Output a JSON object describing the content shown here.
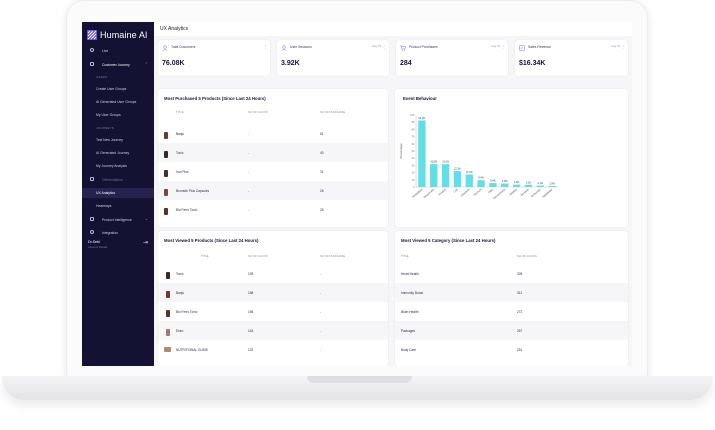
{
  "app": {
    "brand": "Humaine AI",
    "page_title": "UX Analytics"
  },
  "sidebar": {
    "items": [
      {
        "label": "Live"
      },
      {
        "label": "Customer Journey"
      },
      {
        "section": "USERS"
      },
      {
        "label": "Create User Groups"
      },
      {
        "label": "AI Generated User Groups"
      },
      {
        "label": "My User Groups"
      },
      {
        "section": "JOURNEYS"
      },
      {
        "label": "Test New Journey"
      },
      {
        "label": "AI Generated Journey"
      },
      {
        "label": "My Journey Analysis"
      },
      {
        "label": "Differentiation"
      },
      {
        "label": "UX Analytics"
      },
      {
        "label": "Heatmaps"
      },
      {
        "label": "Product Intelligence"
      },
      {
        "label": "Integration"
      }
    ],
    "user": {
      "name": "Dr.Sebi",
      "subtitle": "Account Details"
    }
  },
  "kpis": [
    {
      "label": "Total Customers",
      "value": "76.08K",
      "period": "",
      "color": "#7a5cf0"
    },
    {
      "label": "User Sessions",
      "value": "3.92K",
      "period": "Aug '24",
      "color": "#7a5cf0"
    },
    {
      "label": "Product Purchases",
      "value": "284",
      "period": "Aug '24",
      "color": "#7a5cf0"
    },
    {
      "label": "Sales Revenue",
      "value": "$16.34K",
      "period": "Aug '24",
      "color": "#7a5cf0"
    }
  ],
  "purchased": {
    "title": "Most Purchased 5 Products (Since Last 24 Hours)",
    "cols": [
      "TITLE",
      "NO OF CLICKS",
      "NO OF PURCHASE"
    ],
    "rows": [
      {
        "title": "Banju",
        "clicks": "-",
        "purchase": "51"
      },
      {
        "title": "Tonic",
        "clicks": "-",
        "purchase": "40"
      },
      {
        "title": "Iron Plus",
        "clicks": "-",
        "purchase": "31"
      },
      {
        "title": "Bromide Plus Capsules",
        "clicks": "-",
        "purchase": "26"
      },
      {
        "title": "Bio Ferro Tonic",
        "clicks": "-",
        "purchase": "26"
      }
    ]
  },
  "event": {
    "title": "Event Behaviour"
  },
  "chart_data": {
    "type": "bar",
    "title": "Event Behaviour",
    "ylabel": "Percentage",
    "categories": [
      "Navigation",
      "Search Bar",
      "Product",
      "Cart",
      "Checkout",
      "Account",
      "Filter",
      "Recommend",
      "Wishlist",
      "Reviews",
      "Subscribe",
      "Newsletter"
    ],
    "values": [
      92.4,
      31.8,
      31.6,
      22.1,
      17.3,
      9.4,
      5.4,
      4.9,
      3.3,
      3.1,
      2.1,
      1.5
    ],
    "data_labels": [
      "92.4%",
      "31.8%",
      "31.6%",
      "22.1%",
      "17.3%",
      "9.4%",
      "5.4%",
      "4.9%",
      "3.3%",
      "3.1%",
      "2.1%",
      "1.5%"
    ],
    "ylim": [
      0,
      100
    ],
    "yticks": [
      0,
      10,
      20,
      30,
      40,
      50,
      60,
      70,
      80,
      90,
      100
    ],
    "color": "#5ee0e8",
    "grid": false
  },
  "viewed": {
    "title": "Most Viewed 5 Products (Since Last 24 Hours)",
    "cols": [
      "TITLE",
      "NO OF CLICKS",
      "NO OF PURCHASE"
    ],
    "rows": [
      {
        "title": "Tonic",
        "clicks": "193",
        "purchase": "-"
      },
      {
        "title": "Banju",
        "clicks": "168",
        "purchase": "-"
      },
      {
        "title": "Bio Ferro Tonic",
        "clicks": "156",
        "purchase": "-"
      },
      {
        "title": "Estro",
        "clicks": "143",
        "purchase": "-"
      },
      {
        "title": "NUTRITIONAL GUIDE",
        "clicks": "132",
        "purchase": "-"
      }
    ]
  },
  "category": {
    "title": "Most Viewed 5 Category (Since Last 24 Hours)",
    "cols": [
      "TITLE",
      "NO OF CLICKS"
    ],
    "rows": [
      {
        "title": "Heart Health",
        "clicks": "305"
      },
      {
        "title": "Immunity Boost",
        "clicks": "311"
      },
      {
        "title": "Brain Health",
        "clicks": "272"
      },
      {
        "title": "Packages",
        "clicks": "257"
      },
      {
        "title": "Body Care",
        "clicks": "251"
      }
    ]
  }
}
